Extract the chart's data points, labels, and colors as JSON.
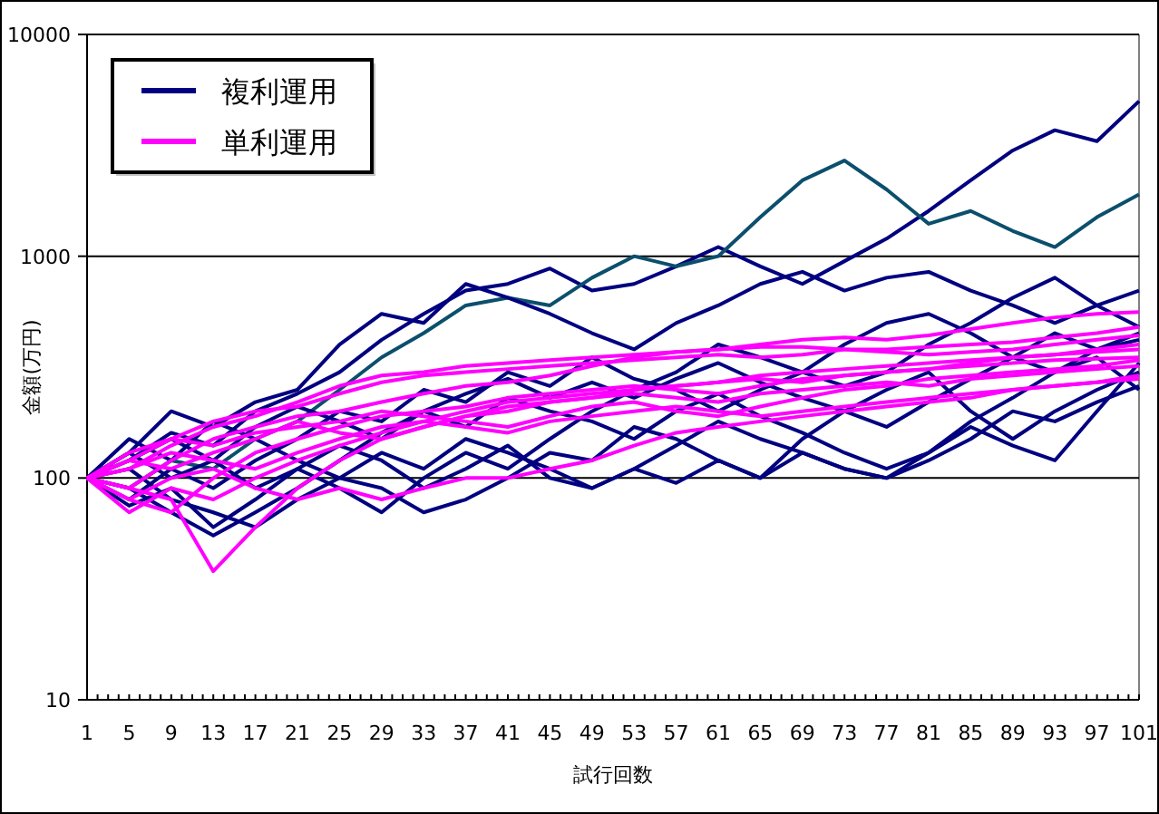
{
  "chart_data": {
    "type": "line",
    "xlabel": "試行回数",
    "ylabel": "金額(万円)",
    "log": "y",
    "grid": "y",
    "legend": "top left",
    "xlim": [
      1,
      101
    ],
    "ylim": [
      10,
      10000
    ],
    "yticks": [
      10,
      100,
      1000,
      10000
    ],
    "xticks": [
      1,
      {
        "value": 2,
        "label": null
      },
      {
        "value": 3,
        "label": null
      },
      {
        "value": 4,
        "label": null
      },
      5,
      {
        "value": 6,
        "label": null
      },
      {
        "value": 7,
        "label": null
      },
      {
        "value": 8,
        "label": null
      },
      9,
      {
        "value": 10,
        "label": null
      },
      {
        "value": 11,
        "label": null
      },
      {
        "value": 12,
        "label": null
      },
      13,
      {
        "value": 14,
        "label": null
      },
      {
        "value": 15,
        "label": null
      },
      {
        "value": 16,
        "label": null
      },
      17,
      {
        "value": 18,
        "label": null
      },
      {
        "value": 19,
        "label": null
      },
      {
        "value": 20,
        "label": null
      },
      21,
      {
        "value": 22,
        "label": null
      },
      {
        "value": 23,
        "label": null
      },
      {
        "value": 24,
        "label": null
      },
      25,
      {
        "value": 26,
        "label": null
      },
      {
        "value": 27,
        "label": null
      },
      {
        "value": 28,
        "label": null
      },
      29,
      {
        "value": 30,
        "label": null
      },
      {
        "value": 31,
        "label": null
      },
      {
        "value": 32,
        "label": null
      },
      33,
      {
        "value": 34,
        "label": null
      },
      {
        "value": 35,
        "label": null
      },
      {
        "value": 36,
        "label": null
      },
      37,
      {
        "value": 38,
        "label": null
      },
      {
        "value": 39,
        "label": null
      },
      {
        "value": 40,
        "label": null
      },
      41,
      {
        "value": 42,
        "label": null
      },
      {
        "value": 43,
        "label": null
      },
      {
        "value": 44,
        "label": null
      },
      45,
      {
        "value": 46,
        "label": null
      },
      {
        "value": 47,
        "label": null
      },
      {
        "value": 48,
        "label": null
      },
      49,
      {
        "value": 50,
        "label": null
      },
      {
        "value": 51,
        "label": null
      },
      {
        "value": 52,
        "label": null
      },
      53,
      {
        "value": 54,
        "label": null
      },
      {
        "value": 55,
        "label": null
      },
      {
        "value": 56,
        "label": null
      },
      57,
      {
        "value": 58,
        "label": null
      },
      {
        "value": 59,
        "label": null
      },
      {
        "value": 60,
        "label": null
      },
      61,
      {
        "value": 62,
        "label": null
      },
      {
        "value": 63,
        "label": null
      },
      {
        "value": 64,
        "label": null
      },
      65,
      {
        "value": 66,
        "label": null
      },
      {
        "value": 67,
        "label": null
      },
      {
        "value": 68,
        "label": null
      },
      69,
      {
        "value": 70,
        "label": null
      },
      {
        "value": 71,
        "label": null
      },
      {
        "value": 72,
        "label": null
      },
      73,
      {
        "value": 74,
        "label": null
      },
      {
        "value": 75,
        "label": null
      },
      {
        "value": 76,
        "label": null
      },
      77,
      {
        "value": 78,
        "label": null
      },
      {
        "value": 79,
        "label": null
      },
      {
        "value": 80,
        "label": null
      },
      81,
      {
        "value": 82,
        "label": null
      },
      {
        "value": 83,
        "label": null
      },
      {
        "value": 84,
        "label": null
      },
      85,
      {
        "value": 86,
        "label": null
      },
      {
        "value": 87,
        "label": null
      },
      {
        "value": 88,
        "label": null
      },
      89,
      {
        "value": 90,
        "label": null
      },
      {
        "value": 91,
        "label": null
      },
      {
        "value": 92,
        "label": null
      },
      93,
      {
        "value": 94,
        "label": null
      },
      {
        "value": 95,
        "label": null
      },
      {
        "value": 96,
        "label": null
      },
      97,
      {
        "value": 98,
        "label": null
      },
      {
        "value": 99,
        "label": null
      },
      {
        "value": 100,
        "label": null
      },
      101
    ],
    "x": [
      1,
      5,
      9,
      13,
      17,
      21,
      25,
      29,
      33,
      37,
      41,
      45,
      49,
      53,
      57,
      61,
      65,
      69,
      73,
      77,
      81,
      85,
      89,
      93,
      97,
      101
    ],
    "series": [
      {
        "name": "複利運用",
        "color": "#000080",
        "values": [
          100,
          120,
          160,
          140,
          200,
          240,
          300,
          420,
          550,
          700,
          750,
          880,
          700,
          750,
          900,
          1100,
          900,
          750,
          950,
          1200,
          1600,
          2200,
          3000,
          3700,
          3300,
          5000
        ]
      },
      {
        "color": "#0b4f6c",
        "values": [
          100,
          90,
          120,
          110,
          150,
          180,
          250,
          350,
          450,
          600,
          650,
          600,
          800,
          1000,
          900,
          1000,
          1500,
          2200,
          2700,
          2000,
          1400,
          1600,
          1300,
          1100,
          1500,
          1900
        ]
      },
      {
        "color": "#000080",
        "values": [
          100,
          130,
          200,
          170,
          220,
          250,
          400,
          550,
          500,
          750,
          650,
          550,
          450,
          380,
          500,
          600,
          750,
          850,
          700,
          800,
          850,
          700,
          600,
          500,
          600,
          700
        ]
      },
      {
        "color": "#000080",
        "values": [
          100,
          80,
          110,
          90,
          120,
          150,
          200,
          180,
          250,
          220,
          300,
          260,
          350,
          280,
          250,
          200,
          250,
          300,
          260,
          300,
          400,
          500,
          650,
          800,
          600,
          480
        ]
      },
      {
        "color": "#000080",
        "values": [
          100,
          75,
          90,
          60,
          80,
          110,
          90,
          70,
          100,
          130,
          110,
          150,
          200,
          250,
          300,
          400,
          350,
          300,
          400,
          500,
          550,
          450,
          350,
          300,
          380,
          420
        ]
      },
      {
        "color": "#000080",
        "values": [
          100,
          150,
          120,
          180,
          150,
          120,
          100,
          90,
          70,
          80,
          100,
          130,
          120,
          170,
          150,
          120,
          100,
          150,
          200,
          250,
          300,
          200,
          150,
          200,
          250,
          300
        ]
      },
      {
        "color": "#000080",
        "values": [
          100,
          110,
          80,
          70,
          60,
          80,
          100,
          130,
          110,
          150,
          130,
          110,
          90,
          110,
          140,
          180,
          150,
          130,
          110,
          100,
          120,
          150,
          200,
          180,
          220,
          260
        ]
      },
      {
        "color": "#000080",
        "values": [
          100,
          90,
          70,
          55,
          70,
          90,
          120,
          160,
          200,
          170,
          230,
          200,
          180,
          150,
          200,
          240,
          190,
          160,
          130,
          110,
          130,
          180,
          230,
          300,
          350,
          250
        ]
      },
      {
        "color": "#000080",
        "values": [
          100,
          130,
          100,
          120,
          90,
          110,
          140,
          120,
          90,
          110,
          140,
          100,
          90,
          110,
          95,
          120,
          100,
          130,
          110,
          100,
          130,
          170,
          140,
          120,
          200,
          330
        ]
      },
      {
        "color": "#000080",
        "values": [
          100,
          120,
          150,
          120,
          170,
          210,
          180,
          150,
          200,
          240,
          280,
          230,
          270,
          230,
          280,
          330,
          270,
          230,
          200,
          170,
          220,
          280,
          350,
          450,
          380,
          450
        ]
      },
      {
        "name": "単利運用",
        "color": "#ff00ff",
        "values": [
          100,
          110,
          140,
          170,
          190,
          220,
          260,
          290,
          300,
          320,
          330,
          340,
          350,
          360,
          370,
          380,
          400,
          420,
          430,
          420,
          440,
          470,
          500,
          530,
          550,
          560
        ]
      },
      {
        "color": "#ff00ff",
        "values": [
          100,
          120,
          150,
          180,
          200,
          210,
          240,
          270,
          290,
          300,
          310,
          320,
          330,
          340,
          350,
          360,
          350,
          360,
          380,
          380,
          390,
          400,
          410,
          430,
          450,
          480
        ]
      },
      {
        "color": "#ff00ff",
        "values": [
          100,
          90,
          120,
          150,
          170,
          190,
          200,
          220,
          240,
          260,
          270,
          290,
          320,
          350,
          370,
          380,
          390,
          390,
          380,
          370,
          360,
          370,
          380,
          400,
          420,
          440
        ]
      },
      {
        "color": "#ff00ff",
        "values": [
          100,
          80,
          70,
          100,
          130,
          150,
          170,
          190,
          200,
          210,
          230,
          240,
          250,
          260,
          250,
          240,
          260,
          280,
          290,
          300,
          310,
          330,
          350,
          360,
          380,
          400
        ]
      },
      {
        "color": "#ff00ff",
        "values": [
          100,
          90,
          80,
          38,
          60,
          90,
          120,
          150,
          170,
          190,
          200,
          220,
          230,
          250,
          260,
          270,
          280,
          270,
          290,
          300,
          310,
          320,
          330,
          340,
          345,
          350
        ]
      },
      {
        "color": "#ff00ff",
        "values": [
          100,
          120,
          110,
          130,
          150,
          180,
          160,
          150,
          170,
          190,
          210,
          220,
          230,
          240,
          230,
          220,
          240,
          250,
          260,
          270,
          260,
          280,
          290,
          300,
          310,
          320
        ]
      },
      {
        "color": "#ff00ff",
        "values": [
          100,
          80,
          100,
          110,
          90,
          80,
          90,
          80,
          90,
          100,
          100,
          110,
          120,
          140,
          160,
          170,
          180,
          190,
          200,
          210,
          220,
          230,
          250,
          260,
          270,
          290
        ]
      },
      {
        "color": "#ff00ff",
        "values": [
          100,
          110,
          130,
          120,
          110,
          130,
          150,
          170,
          180,
          170,
          160,
          180,
          190,
          200,
          210,
          200,
          190,
          200,
          210,
          220,
          230,
          240,
          250,
          260,
          270,
          280
        ]
      },
      {
        "color": "#ff00ff",
        "values": [
          100,
          70,
          90,
          80,
          100,
          120,
          140,
          160,
          180,
          200,
          220,
          230,
          240,
          250,
          260,
          270,
          290,
          300,
          310,
          320,
          330,
          340,
          350,
          360,
          370,
          380
        ]
      },
      {
        "color": "#ff00ff",
        "values": [
          100,
          130,
          150,
          140,
          160,
          170,
          180,
          200,
          190,
          180,
          170,
          190,
          210,
          220,
          200,
          190,
          210,
          230,
          250,
          260,
          280,
          290,
          300,
          310,
          320,
          340
        ]
      }
    ]
  }
}
